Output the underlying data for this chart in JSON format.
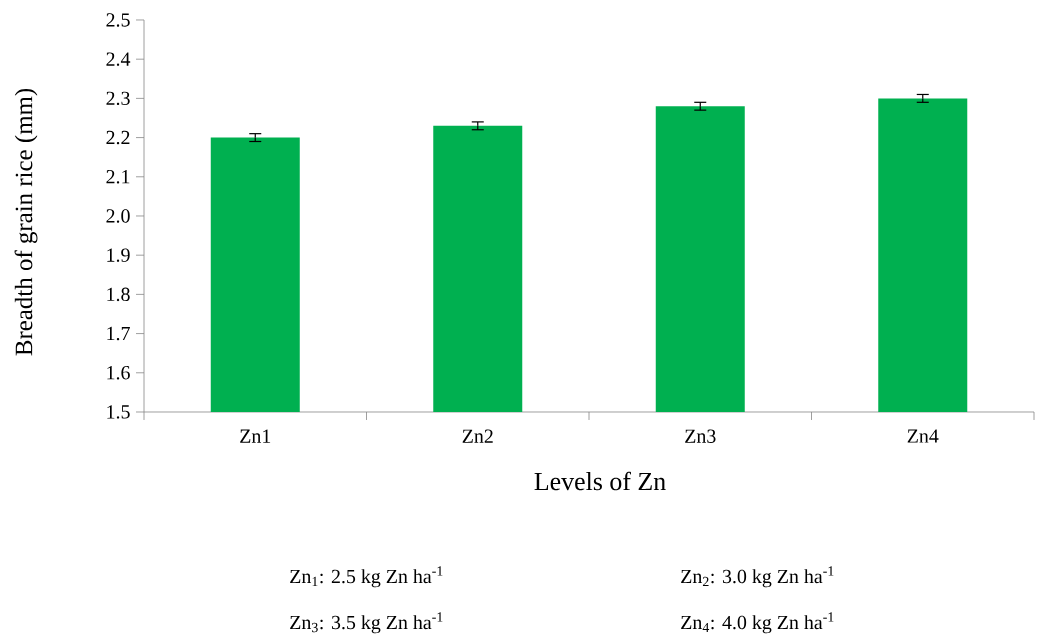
{
  "chart_data": {
    "type": "bar",
    "xlabel": "Levels of Zn",
    "ylabel": "Breadth of grain rice (mm)",
    "categories": [
      "Zn1",
      "Zn2",
      "Zn3",
      "Zn4"
    ],
    "values": [
      2.2,
      2.23,
      2.28,
      2.3
    ],
    "errors": [
      0.01,
      0.01,
      0.01,
      0.01
    ],
    "color": "#00b050",
    "ylim": [
      1.5,
      2.5
    ],
    "yticks": [
      1.5,
      1.6,
      1.7,
      1.8,
      1.9,
      {
        "value": 2,
        "label": "2.0"
      },
      2.1,
      2.2,
      2.3,
      2.4,
      2.5
    ],
    "annotations": [
      "Zn$_{1}$: 2.5 kg Zn ha$^{-1}$",
      "Zn$_{2}$: 3.0 kg Zn ha$^{-1}$",
      "Zn$_{3}$: 3.5 kg Zn ha$^{-1}$",
      "Zn$_{4}$: 4.0 kg Zn ha$^{-1}$"
    ]
  }
}
